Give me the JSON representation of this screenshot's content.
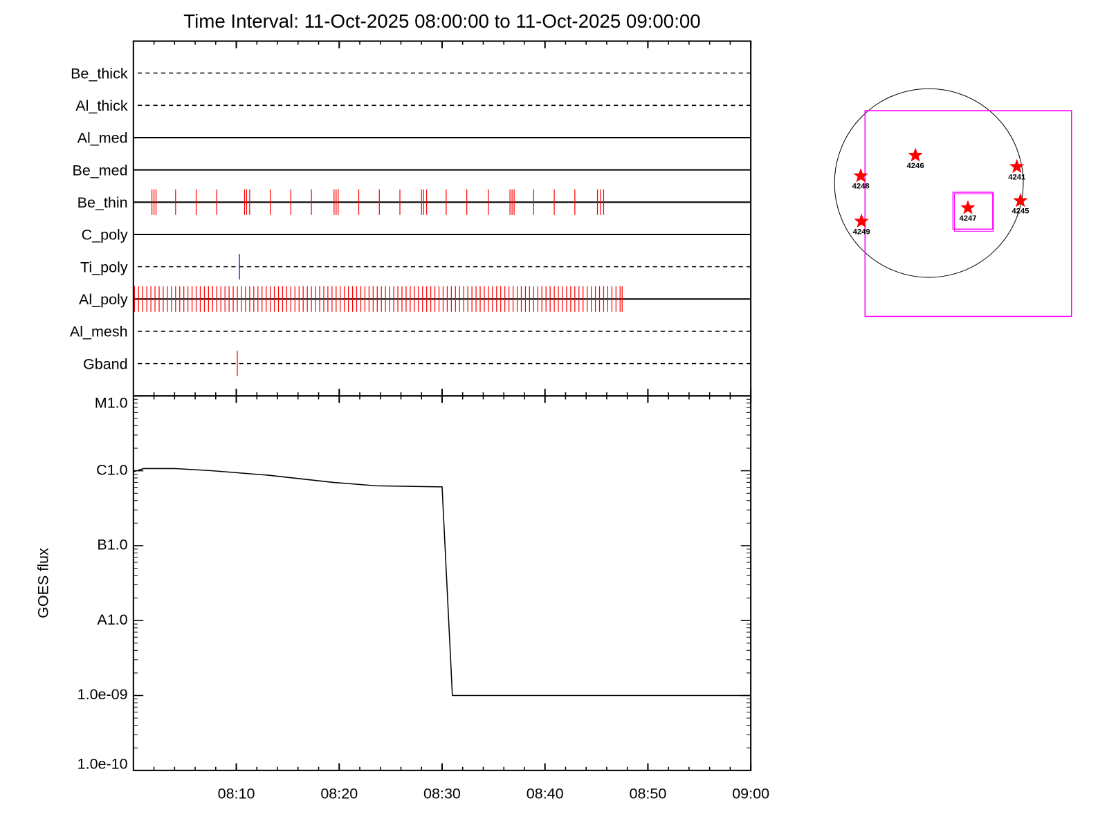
{
  "chart_data": {
    "type": "event_timeline",
    "title": "Time Interval: 11-Oct-2025 08:00:00 to 11-Oct-2025 09:00:00",
    "xlim": [
      0,
      60
    ],
    "xticks": [
      {
        "value": 10,
        "label": "08:10"
      },
      {
        "value": 20,
        "label": "08:20"
      },
      {
        "value": 30,
        "label": "08:30"
      },
      {
        "value": 40,
        "label": "08:40"
      },
      {
        "value": 50,
        "label": "08:50"
      },
      {
        "value": 60,
        "label": "09:00"
      }
    ],
    "channels": [
      {
        "name": "Be_thick",
        "line": "dashed",
        "color": "#ff0000",
        "events": []
      },
      {
        "name": "Al_thick",
        "line": "dashed",
        "color": "#ff0000",
        "events": []
      },
      {
        "name": "Al_med",
        "line": "solid",
        "color": "#ff0000",
        "events": []
      },
      {
        "name": "Be_med",
        "line": "solid",
        "color": "#ff0000",
        "events": []
      },
      {
        "name": "Be_thin",
        "line": "solid",
        "color": "#ff0000",
        "events": [
          1.8,
          2.0,
          2.2,
          4.1,
          6.1,
          8.1,
          10.8,
          11.0,
          11.3,
          13.3,
          15.3,
          17.3,
          19.5,
          19.7,
          19.9,
          21.9,
          23.9,
          25.9,
          28.0,
          28.2,
          28.5,
          30.4,
          32.4,
          34.5,
          36.6,
          36.8,
          37.0,
          38.9,
          40.9,
          42.9,
          45.1,
          45.4,
          45.7
        ]
      },
      {
        "name": "C_poly",
        "line": "solid",
        "color": "#ff0000",
        "events": []
      },
      {
        "name": "Ti_poly",
        "line": "dashed",
        "color": "#0000cc",
        "events": [
          10.3
        ]
      },
      {
        "name": "Al_poly",
        "line": "solid",
        "color": "#ff0000",
        "events": [
          0.1,
          0.5,
          0.9,
          1.3,
          1.7,
          2.1,
          2.5,
          2.9,
          3.3,
          3.7,
          4.1,
          4.5,
          4.9,
          5.3,
          5.7,
          6.1,
          6.5,
          6.9,
          7.3,
          7.7,
          8.1,
          8.5,
          8.9,
          9.3,
          9.7,
          10.1,
          10.5,
          10.9,
          11.3,
          11.7,
          12.1,
          12.5,
          12.9,
          13.3,
          13.7,
          14.1,
          14.5,
          14.9,
          15.3,
          15.7,
          16.1,
          16.5,
          16.9,
          17.3,
          17.7,
          18.1,
          18.5,
          18.9,
          19.3,
          19.7,
          20.1,
          20.5,
          20.9,
          21.3,
          21.7,
          22.1,
          22.5,
          22.9,
          23.3,
          23.7,
          24.1,
          24.5,
          24.9,
          25.3,
          25.7,
          26.1,
          26.5,
          26.9,
          27.3,
          27.7,
          28.1,
          28.5,
          28.9,
          29.3,
          29.7,
          30.1,
          30.5,
          30.9,
          31.3,
          31.7,
          32.1,
          32.5,
          32.9,
          33.3,
          33.7,
          34.1,
          34.5,
          34.9,
          35.3,
          35.7,
          36.1,
          36.5,
          36.9,
          37.3,
          37.7,
          38.1,
          38.5,
          38.9,
          39.3,
          39.7,
          40.1,
          40.5,
          40.9,
          41.3,
          41.7,
          42.1,
          42.5,
          42.9,
          43.3,
          43.7,
          44.1,
          44.5,
          44.9,
          45.3,
          45.7,
          46.1,
          46.5,
          46.9,
          47.3,
          47.5
        ]
      },
      {
        "name": "Al_mesh",
        "line": "dashed",
        "color": "#ff0000",
        "events": []
      },
      {
        "name": "Gband",
        "line": "dashed",
        "color": "#ff0000",
        "events": [
          10.1
        ]
      }
    ],
    "goes": {
      "type": "line",
      "ylabel": "GOES flux",
      "log_scale": true,
      "ylim": [
        1e-10,
        1e-05
      ],
      "yticks": [
        {
          "value": 1e-05,
          "label": "M1.0"
        },
        {
          "value": 1e-06,
          "label": "C1.0"
        },
        {
          "value": 1e-07,
          "label": "B1.0"
        },
        {
          "value": 1e-08,
          "label": "A1.0"
        },
        {
          "value": 1e-09,
          "label": "1.0e-09"
        },
        {
          "value": 1e-10,
          "label": "1.0e-10"
        }
      ],
      "color": "#000000",
      "x": [
        0,
        1,
        4,
        7.7,
        13.2,
        19.4,
        23.6,
        30,
        31,
        60
      ],
      "values": [
        9.7e-07,
        1.07e-06,
        1.07e-06,
        1e-06,
        8.7e-07,
        7e-07,
        6.3e-07,
        6.1e-07,
        1e-09,
        1e-09
      ]
    },
    "regions": [
      {
        "label": "4246"
      },
      {
        "label": "4248"
      },
      {
        "label": "4241"
      },
      {
        "label": "4245"
      },
      {
        "label": "4247"
      },
      {
        "label": "4249"
      }
    ],
    "region_color": "#ff0000",
    "box_color": "#ff00ff"
  }
}
